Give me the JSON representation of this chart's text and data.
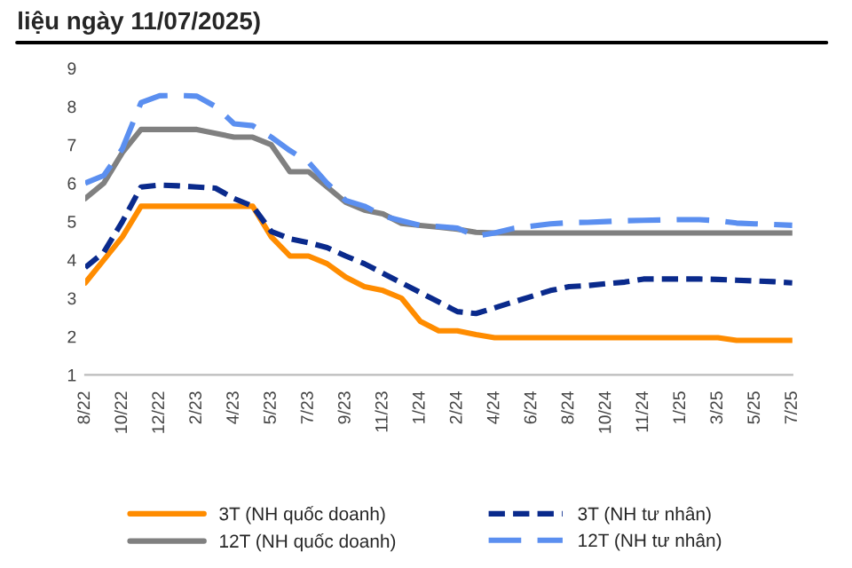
{
  "chart_data": {
    "type": "line",
    "title": "liệu ngày 11/07/2025)",
    "categories": [
      "8/22",
      null,
      "10/22",
      null,
      "12/22",
      null,
      "2/23",
      null,
      "4/23",
      null,
      "5/23",
      null,
      "7/23",
      null,
      "9/23",
      null,
      "11/23",
      null,
      "1/24",
      null,
      "2/24",
      null,
      "4/24",
      null,
      "6/24",
      null,
      "8/24",
      null,
      "10/24",
      null,
      "11/24",
      null,
      "1/25",
      null,
      "3/25",
      null,
      "5/25",
      null,
      "7/25"
    ],
    "ylim": [
      1,
      9
    ],
    "yticks": [
      1,
      2,
      3,
      4,
      5,
      6,
      7,
      8,
      9
    ],
    "legend": "bottom",
    "series": [
      {
        "name": "3T (NH quốc doanh)",
        "color": "#ff8c00",
        "line_style": "solid",
        "values": [
          3.4,
          4.0,
          4.6,
          5.4,
          5.4,
          5.4,
          5.4,
          5.4,
          5.4,
          5.4,
          4.6,
          4.1,
          4.1,
          3.9,
          3.55,
          3.3,
          3.2,
          3.0,
          2.4,
          2.15,
          2.15,
          2.05,
          1.97,
          1.97,
          1.97,
          1.97,
          1.97,
          1.97,
          1.97,
          1.97,
          1.97,
          1.97,
          1.97,
          1.97,
          1.97,
          1.9,
          1.9,
          1.9,
          1.9
        ]
      },
      {
        "name": "12T (NH quốc doanh)",
        "color": "#808080",
        "line_style": "solid",
        "values": [
          5.6,
          6.0,
          6.8,
          7.4,
          7.4,
          7.4,
          7.4,
          7.3,
          7.2,
          7.2,
          7.0,
          6.3,
          6.3,
          5.9,
          5.5,
          5.3,
          5.2,
          4.95,
          4.9,
          4.85,
          4.8,
          4.72,
          4.7,
          4.7,
          4.7,
          4.7,
          4.7,
          4.7,
          4.7,
          4.7,
          4.7,
          4.7,
          4.7,
          4.7,
          4.7,
          4.7,
          4.7,
          4.7,
          4.7
        ]
      },
      {
        "name": "3T (NH tư nhân)",
        "color": "#0a2a8c",
        "line_style": "dashed",
        "values": [
          3.8,
          4.2,
          5.0,
          5.9,
          5.95,
          5.93,
          5.9,
          5.87,
          5.6,
          5.4,
          4.74,
          4.55,
          4.45,
          4.32,
          4.1,
          3.9,
          3.65,
          3.4,
          3.15,
          2.9,
          2.65,
          2.6,
          2.75,
          2.9,
          3.05,
          3.2,
          3.3,
          3.33,
          3.38,
          3.42,
          3.5,
          3.5,
          3.5,
          3.5,
          3.49,
          3.47,
          3.45,
          3.43,
          3.4
        ]
      },
      {
        "name": "12T (NH tư nhân)",
        "color": "#5b8ff0",
        "line_style": "dashed",
        "values": [
          6.0,
          6.2,
          6.9,
          8.1,
          8.28,
          8.29,
          8.27,
          8.0,
          7.55,
          7.5,
          7.2,
          6.85,
          6.55,
          6.0,
          5.55,
          5.4,
          5.15,
          5.02,
          4.9,
          4.87,
          4.83,
          4.62,
          4.7,
          4.82,
          4.88,
          4.94,
          4.97,
          4.98,
          5.0,
          5.02,
          5.03,
          5.04,
          5.05,
          5.05,
          5.02,
          4.96,
          4.94,
          4.92,
          4.9
        ]
      }
    ]
  }
}
